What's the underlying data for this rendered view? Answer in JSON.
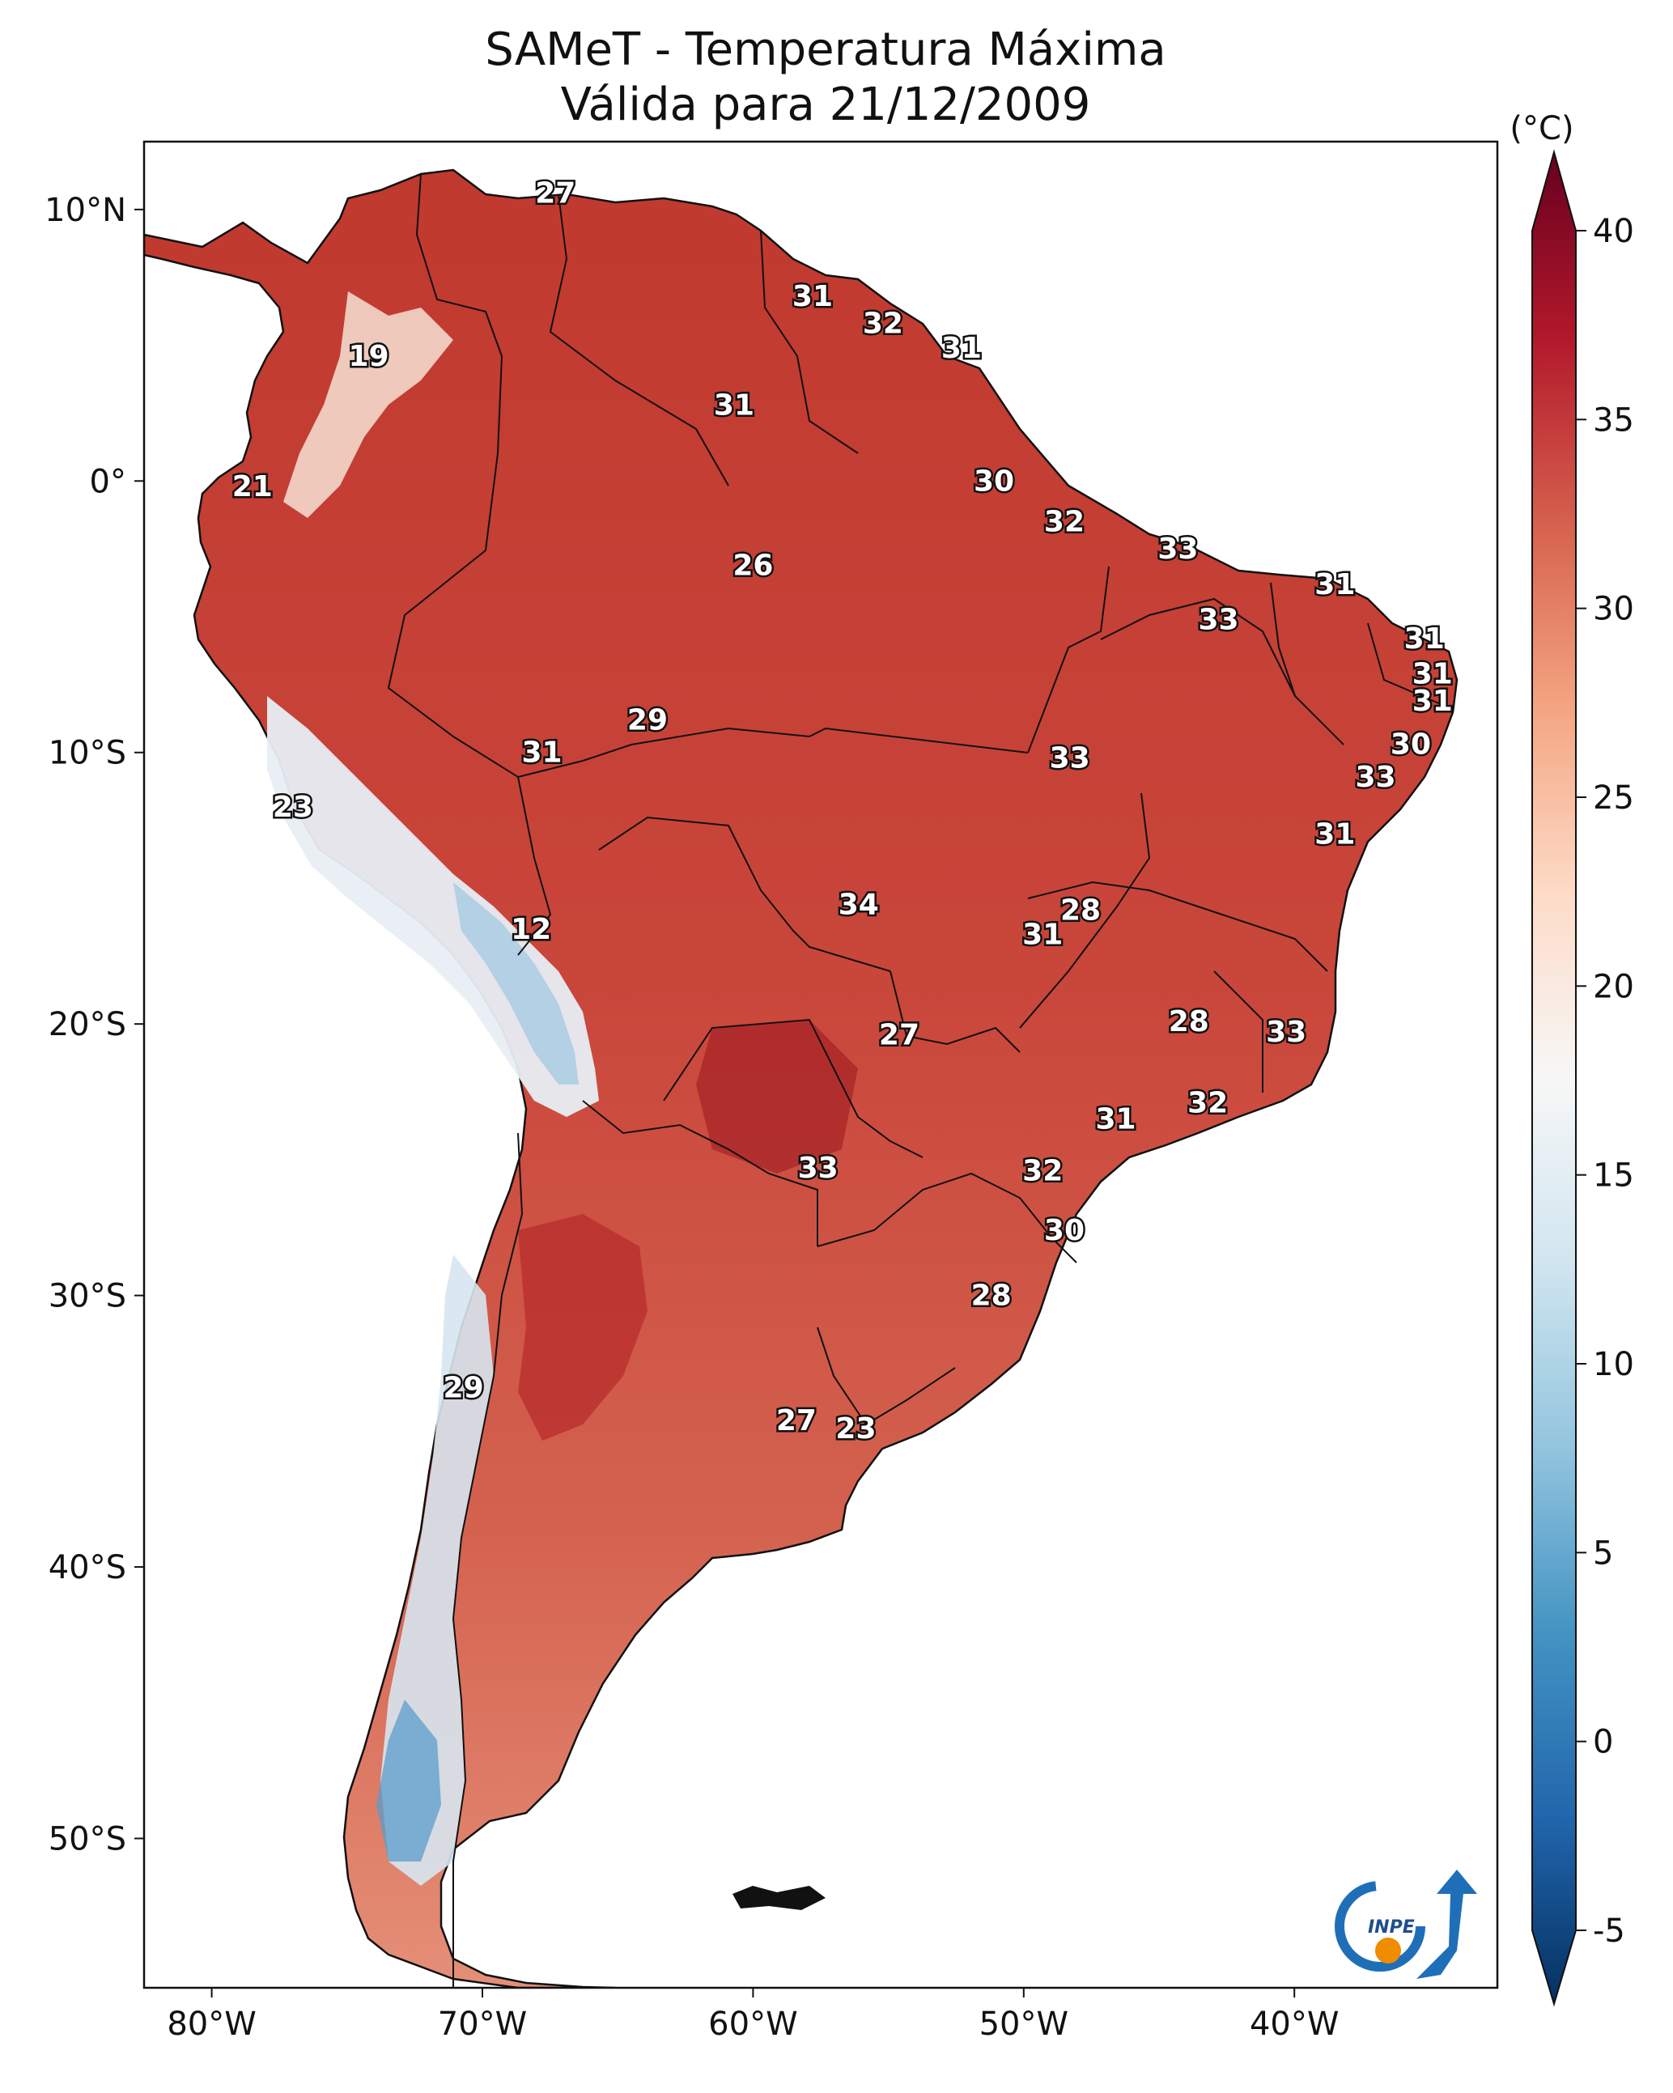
{
  "title": {
    "line1": "SAMeT - Temperatura Máxima",
    "line2": "Válida para 21/12/2009"
  },
  "colorbar": {
    "unit": "(°C)",
    "ticks": [
      "40",
      "35",
      "30",
      "25",
      "20",
      "15",
      "10",
      "5",
      "0",
      "-5"
    ],
    "range": [
      -5,
      40
    ],
    "colors": [
      "#053061",
      "#2166ac",
      "#4393c3",
      "#92c5de",
      "#d1e5f0",
      "#f7f7f7",
      "#fddbc7",
      "#f4a582",
      "#d6604d",
      "#b2182b",
      "#67001f"
    ]
  },
  "axes": {
    "lat_labels": [
      "10°N",
      "0°",
      "10°S",
      "20°S",
      "30°S",
      "40°S",
      "50°S"
    ],
    "lon_labels": [
      "80°W",
      "70°W",
      "60°W",
      "50°W",
      "40°W"
    ]
  },
  "map_data": {
    "region": "South America",
    "lon_range": [
      -82.5,
      -32.5
    ],
    "lat_range": [
      -55.5,
      12.5
    ],
    "station_values": [
      {
        "lon": -67.3,
        "lat": 10.6,
        "value": "27"
      },
      {
        "lon": -74.2,
        "lat": 4.6,
        "value": "19"
      },
      {
        "lon": -57.8,
        "lat": 6.8,
        "value": "31"
      },
      {
        "lon": -55.2,
        "lat": 5.8,
        "value": "32"
      },
      {
        "lon": -52.3,
        "lat": 4.9,
        "value": "31"
      },
      {
        "lon": -60.7,
        "lat": 2.8,
        "value": "31"
      },
      {
        "lon": -78.5,
        "lat": -0.2,
        "value": "21"
      },
      {
        "lon": -51.1,
        "lat": 0.0,
        "value": "30"
      },
      {
        "lon": -48.5,
        "lat": -1.5,
        "value": "32"
      },
      {
        "lon": -44.3,
        "lat": -2.5,
        "value": "33"
      },
      {
        "lon": -38.5,
        "lat": -3.8,
        "value": "31"
      },
      {
        "lon": -60.0,
        "lat": -3.1,
        "value": "26"
      },
      {
        "lon": -42.8,
        "lat": -5.1,
        "value": "33"
      },
      {
        "lon": -35.2,
        "lat": -5.8,
        "value": "31"
      },
      {
        "lon": -34.9,
        "lat": -7.1,
        "value": "31"
      },
      {
        "lon": -34.9,
        "lat": -8.1,
        "value": "31"
      },
      {
        "lon": -35.7,
        "lat": -9.7,
        "value": "30"
      },
      {
        "lon": -63.9,
        "lat": -8.8,
        "value": "29"
      },
      {
        "lon": -67.8,
        "lat": -10.0,
        "value": "31"
      },
      {
        "lon": -48.3,
        "lat": -10.2,
        "value": "33"
      },
      {
        "lon": -37.0,
        "lat": -10.9,
        "value": "33"
      },
      {
        "lon": -77.0,
        "lat": -12.0,
        "value": "23"
      },
      {
        "lon": -38.5,
        "lat": -13.0,
        "value": "31"
      },
      {
        "lon": -68.2,
        "lat": -16.5,
        "value": "12"
      },
      {
        "lon": -56.1,
        "lat": -15.6,
        "value": "34"
      },
      {
        "lon": -47.9,
        "lat": -15.8,
        "value": "28"
      },
      {
        "lon": -49.3,
        "lat": -16.7,
        "value": "31"
      },
      {
        "lon": -43.9,
        "lat": -19.9,
        "value": "28"
      },
      {
        "lon": -54.6,
        "lat": -20.4,
        "value": "27"
      },
      {
        "lon": -40.3,
        "lat": -20.3,
        "value": "33"
      },
      {
        "lon": -43.2,
        "lat": -22.9,
        "value": "32"
      },
      {
        "lon": -46.6,
        "lat": -23.5,
        "value": "31"
      },
      {
        "lon": -57.6,
        "lat": -25.3,
        "value": "33"
      },
      {
        "lon": -49.3,
        "lat": -25.4,
        "value": "32"
      },
      {
        "lon": -48.5,
        "lat": -27.6,
        "value": "30"
      },
      {
        "lon": -51.2,
        "lat": -30.0,
        "value": "28"
      },
      {
        "lon": -70.7,
        "lat": -33.4,
        "value": "29"
      },
      {
        "lon": -58.4,
        "lat": -34.6,
        "value": "27"
      },
      {
        "lon": -56.2,
        "lat": -34.9,
        "value": "23"
      }
    ]
  },
  "logo": {
    "text": "INPE",
    "colors": {
      "ring": "#1f6fb8",
      "dot": "#f08c00"
    }
  }
}
